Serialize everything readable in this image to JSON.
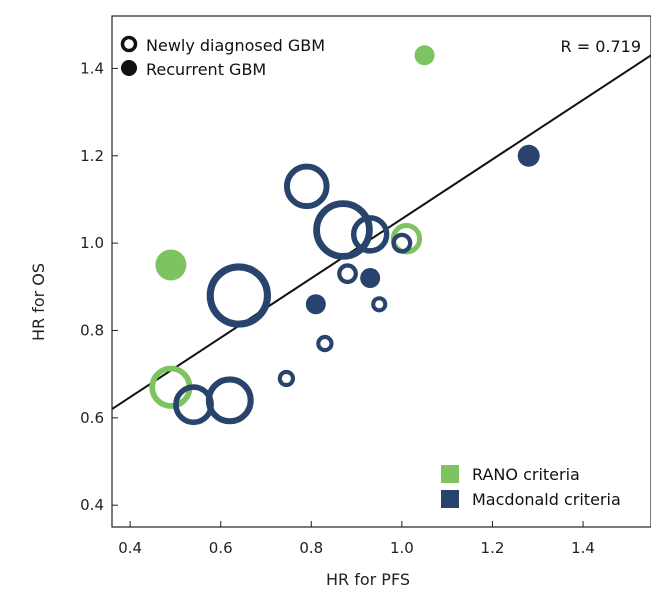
{
  "chart_data": {
    "type": "scatter",
    "xlabel": "HR for PFS",
    "ylabel": "HR for OS",
    "xlim": [
      0.36,
      1.55
    ],
    "ylim": [
      0.35,
      1.52
    ],
    "x_ticks": [
      "0.4",
      "0.6",
      "0.8",
      "1.0",
      "1.2",
      "1.4"
    ],
    "y_ticks": [
      "0.4",
      "0.6",
      "0.8",
      "1.0",
      "1.2",
      "1.4"
    ],
    "annotation": "R = 0.719",
    "regression_line": {
      "x": [
        0.36,
        1.55
      ],
      "y": [
        0.62,
        1.43
      ]
    },
    "colors": {
      "rano": "#7dc35f",
      "macdonald": "#28436c",
      "line": "#111111"
    },
    "legend_type": [
      {
        "label": "Newly diagnosed GBM",
        "marker": "hollow"
      },
      {
        "label": "Recurrent GBM",
        "marker": "filled"
      }
    ],
    "legend_criteria": [
      {
        "label": "RANO criteria",
        "group": "rano"
      },
      {
        "label": "Macdonald criteria",
        "group": "macdonald"
      }
    ],
    "points": [
      {
        "x": 1.05,
        "y": 1.43,
        "size": 1.0,
        "group": "rano",
        "filled": true
      },
      {
        "x": 0.49,
        "y": 0.95,
        "size": 1.55,
        "group": "rano",
        "filled": true
      },
      {
        "x": 0.49,
        "y": 0.67,
        "size": 1.7,
        "group": "rano",
        "filled": false
      },
      {
        "x": 1.01,
        "y": 1.01,
        "size": 1.2,
        "group": "rano",
        "filled": false
      },
      {
        "x": 1.28,
        "y": 1.2,
        "size": 1.1,
        "group": "macdonald",
        "filled": true
      },
      {
        "x": 0.81,
        "y": 0.86,
        "size": 1.0,
        "group": "macdonald",
        "filled": true
      },
      {
        "x": 0.93,
        "y": 0.92,
        "size": 1.0,
        "group": "macdonald",
        "filled": true
      },
      {
        "x": 0.79,
        "y": 1.13,
        "size": 1.8,
        "group": "macdonald",
        "filled": false
      },
      {
        "x": 0.87,
        "y": 1.03,
        "size": 2.4,
        "group": "macdonald",
        "filled": false
      },
      {
        "x": 0.93,
        "y": 1.02,
        "size": 1.5,
        "group": "macdonald",
        "filled": false
      },
      {
        "x": 1.0,
        "y": 1.0,
        "size": 0.75,
        "group": "macdonald",
        "filled": false
      },
      {
        "x": 0.88,
        "y": 0.93,
        "size": 0.75,
        "group": "macdonald",
        "filled": false
      },
      {
        "x": 0.95,
        "y": 0.86,
        "size": 0.55,
        "group": "macdonald",
        "filled": false
      },
      {
        "x": 0.83,
        "y": 0.77,
        "size": 0.6,
        "group": "macdonald",
        "filled": false
      },
      {
        "x": 0.745,
        "y": 0.69,
        "size": 0.6,
        "group": "macdonald",
        "filled": false
      },
      {
        "x": 0.64,
        "y": 0.88,
        "size": 2.6,
        "group": "macdonald",
        "filled": false
      },
      {
        "x": 0.54,
        "y": 0.63,
        "size": 1.6,
        "group": "macdonald",
        "filled": false
      },
      {
        "x": 0.62,
        "y": 0.64,
        "size": 1.9,
        "group": "macdonald",
        "filled": false
      }
    ]
  }
}
